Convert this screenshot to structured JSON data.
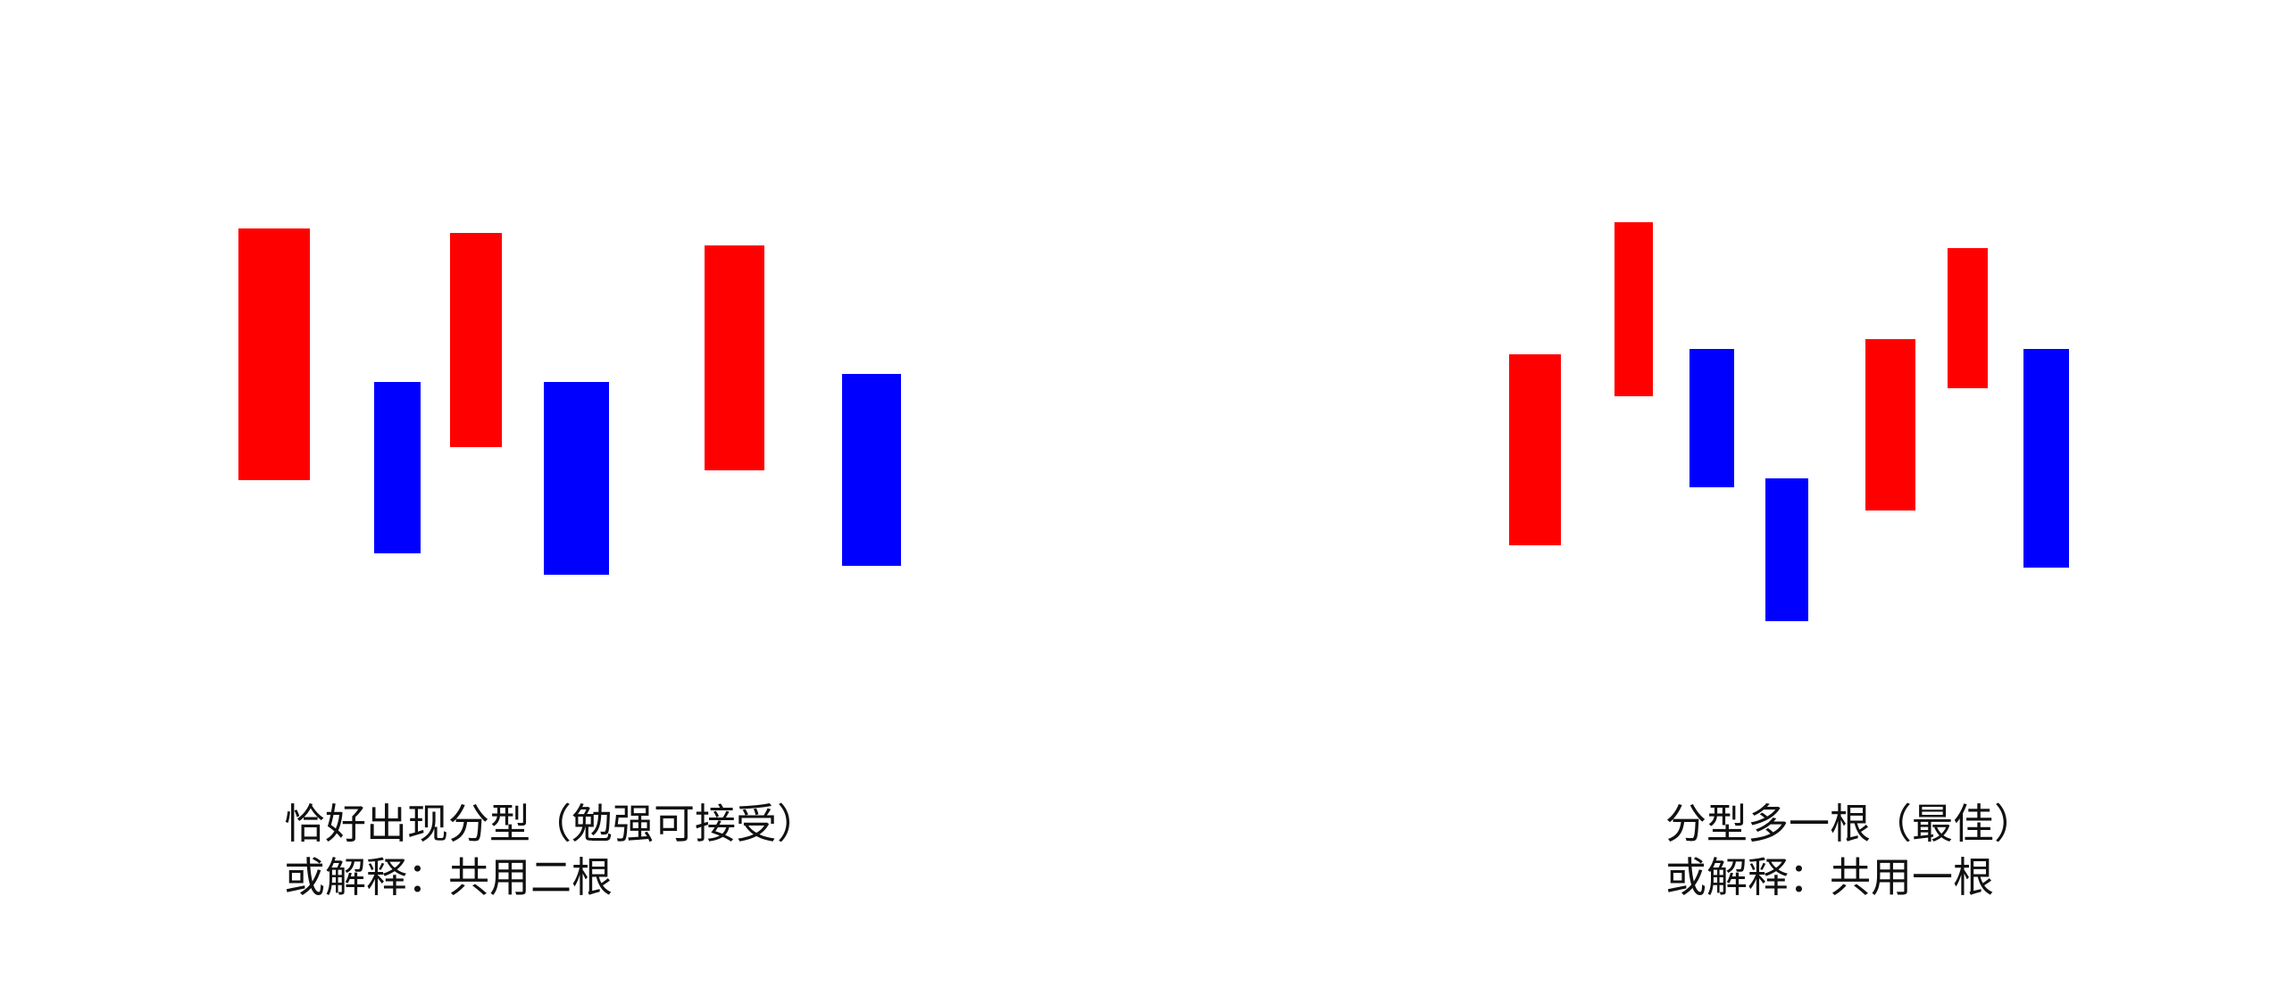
{
  "colors": {
    "red": "#ff0000",
    "blue": "#0000ff",
    "background": "#ffffff",
    "text": "#111111"
  },
  "left_panel": {
    "caption_line1": "恰好出现分型（勉强可接受）",
    "caption_line2": "或解释：共用二根",
    "bars": [
      {
        "color": "red"
      },
      {
        "color": "blue"
      },
      {
        "color": "red"
      },
      {
        "color": "blue"
      },
      {
        "color": "red"
      },
      {
        "color": "blue"
      }
    ]
  },
  "right_panel": {
    "caption_line1": "分型多一根（最佳）",
    "caption_line2": "或解释：共用一根",
    "bars": [
      {
        "color": "red"
      },
      {
        "color": "red"
      },
      {
        "color": "blue"
      },
      {
        "color": "blue"
      },
      {
        "color": "red"
      },
      {
        "color": "red"
      },
      {
        "color": "blue"
      }
    ]
  }
}
